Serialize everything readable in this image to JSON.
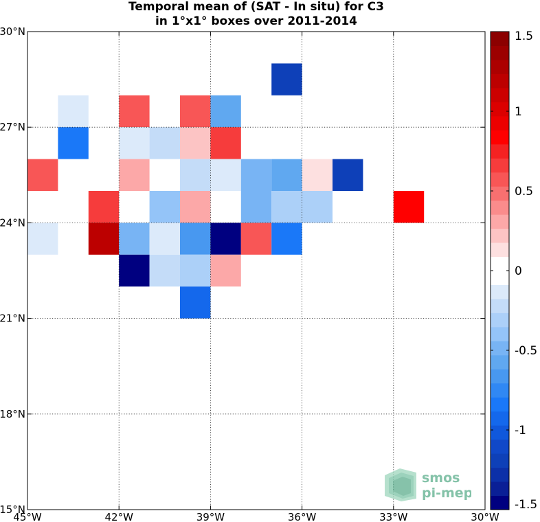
{
  "title_line1": "Temporal mean of (SAT - In situ) for C3",
  "title_line2": "in 1°x1° boxes over 2011-2014",
  "watermark": {
    "line1": "smos",
    "line2": "pi-mep",
    "color": "#6fb89a"
  },
  "chart_data": {
    "type": "heatmap",
    "xlim": [
      -45,
      -30
    ],
    "ylim": [
      15,
      30
    ],
    "x_ticks": [
      {
        "value": -45,
        "label": "45°W"
      },
      {
        "value": -42,
        "label": "42°W"
      },
      {
        "value": -39,
        "label": "39°W"
      },
      {
        "value": -36,
        "label": "36°W"
      },
      {
        "value": -33,
        "label": "33°W"
      },
      {
        "value": -30,
        "label": "30°W"
      }
    ],
    "y_ticks": [
      {
        "value": 15,
        "label": "15°N"
      },
      {
        "value": 18,
        "label": "18°N"
      },
      {
        "value": 21,
        "label": "21°N"
      },
      {
        "value": 24,
        "label": "24°N"
      },
      {
        "value": 27,
        "label": "27°N"
      },
      {
        "value": 30,
        "label": "30°N"
      }
    ],
    "grid": true,
    "colorbar": {
      "min": -1.5,
      "max": 1.5,
      "position": "right",
      "ticks": [
        {
          "value": 1.5,
          "label": "1.5"
        },
        {
          "value": 1,
          "label": "1"
        },
        {
          "value": 0.5,
          "label": "0.5"
        },
        {
          "value": 0,
          "label": "0"
        },
        {
          "value": -0.5,
          "label": "-0.5"
        },
        {
          "value": -1,
          "label": "-1"
        },
        {
          "value": -1.5,
          "label": "-1.5"
        }
      ],
      "colors_low_to_high": [
        "#000080",
        "#0a1f96",
        "#0c30a8",
        "#0e40b8",
        "#1048c8",
        "#1058dc",
        "#1468ec",
        "#1a78f8",
        "#3088f4",
        "#4898f0",
        "#60a8f0",
        "#78b4f4",
        "#94c4f8",
        "#acd0f8",
        "#c4dcf8",
        "#dceafa",
        "#ffffff",
        "#ffffff",
        "#fde0e0",
        "#fcc4c4",
        "#fca8a8",
        "#fa8c8c",
        "#f87070",
        "#f85656",
        "#f63c3c",
        "#f42222",
        "#ff0000",
        "#ec0000",
        "#dc0000",
        "#cc0000",
        "#bc0000",
        "#ac0000",
        "#9c0000",
        "#8c0000"
      ]
    },
    "cells": [
      {
        "lon": -37,
        "lat": 28,
        "value": -1.2
      },
      {
        "lon": -44,
        "lat": 27,
        "value": -0.15
      },
      {
        "lon": -42,
        "lat": 27,
        "value": 0.55
      },
      {
        "lon": -40,
        "lat": 27,
        "value": 0.55
      },
      {
        "lon": -39,
        "lat": 27,
        "value": -0.6
      },
      {
        "lon": -44,
        "lat": 26,
        "value": -0.8
      },
      {
        "lon": -42,
        "lat": 26,
        "value": -0.15
      },
      {
        "lon": -41,
        "lat": 26,
        "value": -0.25
      },
      {
        "lon": -40,
        "lat": 26,
        "value": 0.2
      },
      {
        "lon": -39,
        "lat": 26,
        "value": 0.7
      },
      {
        "lon": -45,
        "lat": 25,
        "value": 0.55
      },
      {
        "lon": -42,
        "lat": 25,
        "value": 0.3
      },
      {
        "lon": -40,
        "lat": 25,
        "value": -0.25
      },
      {
        "lon": -39,
        "lat": 25,
        "value": -0.15
      },
      {
        "lon": -38,
        "lat": 25,
        "value": -0.45
      },
      {
        "lon": -37,
        "lat": 25,
        "value": -0.6
      },
      {
        "lon": -36,
        "lat": 25,
        "value": 0.15
      },
      {
        "lon": -35,
        "lat": 25,
        "value": -1.2
      },
      {
        "lon": -43,
        "lat": 24,
        "value": 0.7
      },
      {
        "lon": -41,
        "lat": 24,
        "value": -0.4
      },
      {
        "lon": -40,
        "lat": 24,
        "value": 0.35
      },
      {
        "lon": -38,
        "lat": 24,
        "value": -0.45
      },
      {
        "lon": -37,
        "lat": 24,
        "value": -0.35
      },
      {
        "lon": -36,
        "lat": 24,
        "value": -0.35
      },
      {
        "lon": -33,
        "lat": 24,
        "value": 0.8
      },
      {
        "lon": -45,
        "lat": 23,
        "value": -0.15
      },
      {
        "lon": -43,
        "lat": 23,
        "value": 1.15
      },
      {
        "lon": -42,
        "lat": 23,
        "value": -0.5
      },
      {
        "lon": -41,
        "lat": 23,
        "value": -0.15
      },
      {
        "lon": -40,
        "lat": 23,
        "value": -0.65
      },
      {
        "lon": -39,
        "lat": 23,
        "value": -1.5
      },
      {
        "lon": -38,
        "lat": 23,
        "value": 0.55
      },
      {
        "lon": -37,
        "lat": 23,
        "value": -0.8
      },
      {
        "lon": -42,
        "lat": 22,
        "value": -1.5
      },
      {
        "lon": -41,
        "lat": 22,
        "value": -0.25
      },
      {
        "lon": -40,
        "lat": 22,
        "value": -0.35
      },
      {
        "lon": -39,
        "lat": 22,
        "value": 0.3
      },
      {
        "lon": -40,
        "lat": 21,
        "value": -0.95
      }
    ]
  }
}
